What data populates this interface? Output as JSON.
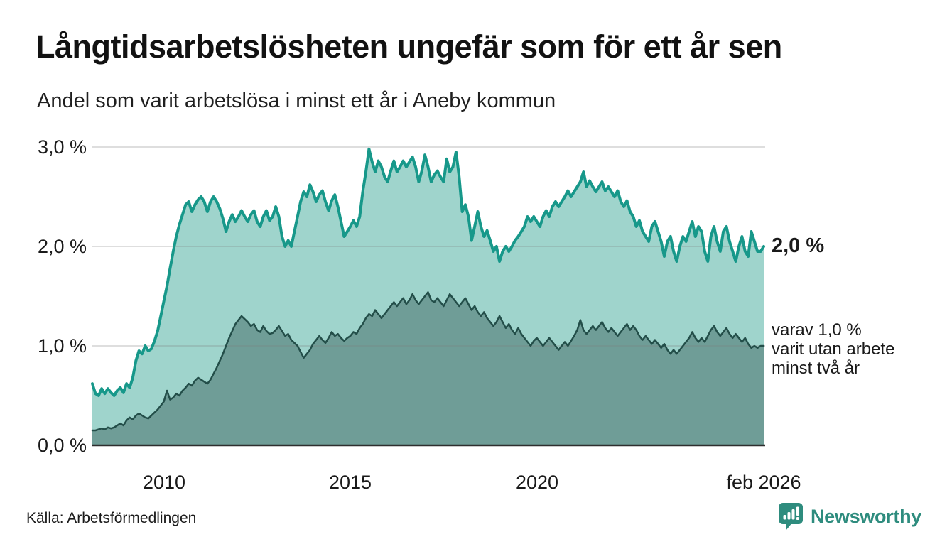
{
  "header": {
    "title": "Långtidsarbetslösheten ungefär som för ett år sen",
    "subtitle": "Andel som varit arbetslösa i minst ett år i Aneby kommun"
  },
  "footer": {
    "source": "Källa: Arbetsförmedlingen",
    "brand_name": "Newsworthy",
    "brand_color": "#2E8C7E"
  },
  "chart_data": {
    "type": "area",
    "title": "Långtidsarbetslösheten ungefär som för ett år sen",
    "subtitle": "Andel som varit arbetslösa i minst ett år i Aneby kommun",
    "unit": "%",
    "frequency": "monthly",
    "x_start": "2008-02",
    "x_end": "2026-02",
    "ylim": [
      0,
      3
    ],
    "grid": true,
    "legend_position": "direct-end-labels",
    "ytick_labels": [
      "3,0 %",
      "2,0 %",
      "1,0 %",
      "0,0 %"
    ],
    "xtick_labels": [
      "2010",
      "2015",
      "2020",
      "feb 2026"
    ],
    "annotations": {
      "end_label_primary": "2,0 %",
      "end_label_secondary_lines": [
        "varav 1,0 %",
        "varit utan arbete",
        "minst två år"
      ]
    },
    "colors": {
      "line_1yr": "#17988A",
      "fill_1yr": "#9FD4CC",
      "line_2yr": "#234E49",
      "fill_2yr": "#6F9D97",
      "gridline": "#7D7D7D",
      "baseline": "#2E2E2E"
    },
    "series": [
      {
        "name": "Andel arbetslösa minst ett år",
        "end_value": 2.0,
        "color": "#17988A",
        "fill": "#9FD4CC",
        "stroke_width": 4,
        "values": [
          0.62,
          0.52,
          0.5,
          0.57,
          0.52,
          0.57,
          0.53,
          0.5,
          0.55,
          0.58,
          0.53,
          0.62,
          0.58,
          0.68,
          0.85,
          0.95,
          0.92,
          1.0,
          0.95,
          0.97,
          1.05,
          1.15,
          1.3,
          1.45,
          1.6,
          1.78,
          1.95,
          2.1,
          2.22,
          2.32,
          2.42,
          2.45,
          2.35,
          2.42,
          2.47,
          2.5,
          2.45,
          2.35,
          2.45,
          2.5,
          2.45,
          2.38,
          2.28,
          2.15,
          2.25,
          2.32,
          2.25,
          2.3,
          2.36,
          2.3,
          2.25,
          2.32,
          2.36,
          2.25,
          2.2,
          2.3,
          2.36,
          2.26,
          2.3,
          2.4,
          2.3,
          2.1,
          2.0,
          2.06,
          2.0,
          2.15,
          2.3,
          2.45,
          2.55,
          2.5,
          2.62,
          2.55,
          2.45,
          2.52,
          2.56,
          2.45,
          2.36,
          2.46,
          2.52,
          2.4,
          2.25,
          2.1,
          2.15,
          2.2,
          2.26,
          2.2,
          2.3,
          2.55,
          2.75,
          2.98,
          2.85,
          2.75,
          2.86,
          2.8,
          2.7,
          2.65,
          2.76,
          2.86,
          2.75,
          2.8,
          2.86,
          2.8,
          2.85,
          2.9,
          2.8,
          2.65,
          2.76,
          2.92,
          2.8,
          2.65,
          2.72,
          2.76,
          2.7,
          2.65,
          2.88,
          2.75,
          2.8,
          2.95,
          2.7,
          2.35,
          2.42,
          2.3,
          2.06,
          2.2,
          2.35,
          2.2,
          2.1,
          2.16,
          2.06,
          1.95,
          2.0,
          1.85,
          1.95,
          2.0,
          1.95,
          2.0,
          2.06,
          2.1,
          2.15,
          2.2,
          2.3,
          2.25,
          2.3,
          2.25,
          2.2,
          2.3,
          2.36,
          2.3,
          2.4,
          2.45,
          2.4,
          2.45,
          2.5,
          2.56,
          2.5,
          2.55,
          2.6,
          2.65,
          2.75,
          2.6,
          2.66,
          2.6,
          2.55,
          2.6,
          2.65,
          2.56,
          2.6,
          2.55,
          2.5,
          2.56,
          2.45,
          2.4,
          2.46,
          2.35,
          2.3,
          2.2,
          2.26,
          2.15,
          2.1,
          2.05,
          2.2,
          2.25,
          2.15,
          2.05,
          1.9,
          2.05,
          2.1,
          1.95,
          1.85,
          2.0,
          2.1,
          2.05,
          2.15,
          2.25,
          2.1,
          2.2,
          2.15,
          1.95,
          1.85,
          2.1,
          2.2,
          2.05,
          1.95,
          2.15,
          2.2,
          2.05,
          1.95,
          1.85,
          2.0,
          2.1,
          1.95,
          1.9,
          2.15,
          2.05,
          1.95,
          1.95,
          2.0
        ]
      },
      {
        "name": "varav utan arbete minst två år",
        "end_value": 1.0,
        "color": "#234E49",
        "fill": "#6F9D97",
        "stroke_width": 2.5,
        "values": [
          0.15,
          0.15,
          0.16,
          0.17,
          0.16,
          0.18,
          0.17,
          0.18,
          0.2,
          0.22,
          0.2,
          0.25,
          0.28,
          0.26,
          0.3,
          0.32,
          0.3,
          0.28,
          0.27,
          0.3,
          0.33,
          0.36,
          0.4,
          0.44,
          0.55,
          0.46,
          0.48,
          0.52,
          0.5,
          0.55,
          0.58,
          0.62,
          0.6,
          0.65,
          0.68,
          0.66,
          0.64,
          0.62,
          0.66,
          0.72,
          0.78,
          0.85,
          0.92,
          1.0,
          1.08,
          1.15,
          1.22,
          1.26,
          1.3,
          1.27,
          1.24,
          1.2,
          1.22,
          1.16,
          1.14,
          1.2,
          1.15,
          1.12,
          1.13,
          1.16,
          1.2,
          1.15,
          1.1,
          1.12,
          1.06,
          1.03,
          1.0,
          0.94,
          0.88,
          0.92,
          0.96,
          1.02,
          1.06,
          1.1,
          1.06,
          1.03,
          1.08,
          1.14,
          1.1,
          1.12,
          1.08,
          1.05,
          1.08,
          1.1,
          1.14,
          1.12,
          1.18,
          1.22,
          1.28,
          1.32,
          1.3,
          1.36,
          1.32,
          1.28,
          1.32,
          1.36,
          1.4,
          1.44,
          1.4,
          1.44,
          1.48,
          1.42,
          1.46,
          1.52,
          1.46,
          1.42,
          1.46,
          1.5,
          1.54,
          1.46,
          1.44,
          1.48,
          1.44,
          1.4,
          1.46,
          1.52,
          1.48,
          1.44,
          1.4,
          1.44,
          1.48,
          1.42,
          1.36,
          1.4,
          1.34,
          1.3,
          1.34,
          1.28,
          1.24,
          1.2,
          1.24,
          1.3,
          1.24,
          1.18,
          1.22,
          1.16,
          1.12,
          1.18,
          1.12,
          1.08,
          1.04,
          1.0,
          1.05,
          1.08,
          1.04,
          1.0,
          1.04,
          1.08,
          1.04,
          1.0,
          0.96,
          1.0,
          1.04,
          1.0,
          1.05,
          1.1,
          1.16,
          1.26,
          1.16,
          1.12,
          1.16,
          1.2,
          1.16,
          1.2,
          1.24,
          1.18,
          1.14,
          1.18,
          1.14,
          1.1,
          1.14,
          1.18,
          1.22,
          1.16,
          1.2,
          1.16,
          1.1,
          1.06,
          1.1,
          1.06,
          1.02,
          1.06,
          1.02,
          0.98,
          1.02,
          0.96,
          0.92,
          0.96,
          0.92,
          0.96,
          1.0,
          1.04,
          1.08,
          1.14,
          1.08,
          1.04,
          1.08,
          1.04,
          1.1,
          1.16,
          1.2,
          1.14,
          1.1,
          1.14,
          1.18,
          1.12,
          1.08,
          1.12,
          1.08,
          1.04,
          1.08,
          1.02,
          0.98,
          1.0,
          0.98,
          1.0,
          1.0
        ]
      }
    ]
  }
}
